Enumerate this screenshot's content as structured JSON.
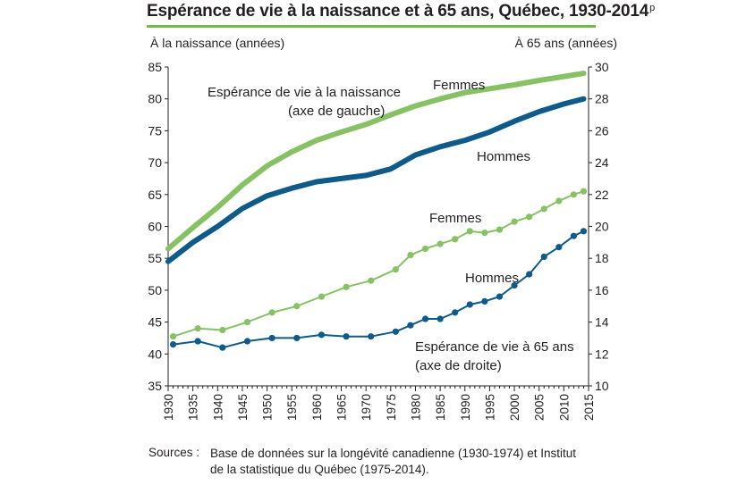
{
  "chart": {
    "title": "Espérance de vie à la naissance et à 65 ans, Québec, 1930-2014",
    "title_superscript": "p",
    "left_axis_title": "À la naissance (années)",
    "right_axis_title": "À 65 ans (années)",
    "annotation_birth_line1": "Espérance de vie à la naissance",
    "annotation_birth_line2": "(axe de gauche)",
    "annotation_65_line1": "Espérance de vie à 65 ans",
    "annotation_65_line2": "(axe de droite)",
    "label_femmes_birth": "Femmes",
    "label_hommes_birth": "Hommes",
    "label_femmes_65": "Femmes",
    "label_hommes_65": "Hommes"
  },
  "footer": {
    "sources_label": "Sources :",
    "sources_text": "Base de données sur la longévité canadienne (1930-1974) et Institut de la statistique du Québec (1975-2014)."
  },
  "colors": {
    "femmes": "#86c163",
    "hommes": "#0e5a8a",
    "title_rule": "#73b94e",
    "text": "#231f20"
  },
  "chart_data": {
    "type": "line",
    "title": "Espérance de vie à la naissance et à 65 ans, Québec, 1930-2014",
    "xlabel": "",
    "x_ticks": [
      1930,
      1935,
      1940,
      1945,
      1950,
      1955,
      1960,
      1965,
      1970,
      1975,
      1980,
      1985,
      1990,
      1995,
      2000,
      2005,
      2010,
      2015
    ],
    "left_axis": {
      "label": "À la naissance (années)",
      "ylim": [
        35,
        85
      ],
      "ticks": [
        35,
        40,
        45,
        50,
        55,
        60,
        65,
        70,
        75,
        80,
        85
      ]
    },
    "right_axis": {
      "label": "À 65 ans (années)",
      "ylim": [
        10,
        30
      ],
      "ticks": [
        10,
        12,
        14,
        16,
        18,
        20,
        22,
        24,
        26,
        28,
        30
      ]
    },
    "grid": false,
    "series": [
      {
        "name": "Femmes",
        "axis": "left",
        "group": "naissance",
        "color": "#86c163",
        "x": [
          1930,
          1935,
          1940,
          1945,
          1950,
          1955,
          1960,
          1965,
          1970,
          1975,
          1980,
          1985,
          1990,
          1995,
          2000,
          2005,
          2010,
          2014
        ],
        "y": [
          56.5,
          59.8,
          63.0,
          66.5,
          69.5,
          71.7,
          73.5,
          74.8,
          76.0,
          77.5,
          78.9,
          80.0,
          81.0,
          81.6,
          82.2,
          82.9,
          83.5,
          84.0
        ]
      },
      {
        "name": "Hommes",
        "axis": "left",
        "group": "naissance",
        "color": "#0e5a8a",
        "x": [
          1930,
          1935,
          1940,
          1945,
          1950,
          1955,
          1960,
          1965,
          1970,
          1975,
          1980,
          1985,
          1990,
          1995,
          2000,
          2005,
          2010,
          2014
        ],
        "y": [
          54.5,
          57.5,
          60.0,
          62.8,
          64.8,
          66.0,
          67.0,
          67.5,
          68.0,
          69.0,
          71.2,
          72.5,
          73.5,
          74.8,
          76.5,
          78.0,
          79.2,
          80.0
        ]
      },
      {
        "name": "Femmes",
        "axis": "right",
        "group": "65 ans",
        "color": "#86c163",
        "x": [
          1931,
          1936,
          1941,
          1946,
          1951,
          1956,
          1961,
          1966,
          1971,
          1976,
          1979,
          1982,
          1985,
          1988,
          1991,
          1994,
          1997,
          2000,
          2003,
          2006,
          2009,
          2012,
          2014
        ],
        "y": [
          13.1,
          13.6,
          13.5,
          14.0,
          14.6,
          15.0,
          15.6,
          16.2,
          16.6,
          17.3,
          18.2,
          18.6,
          18.9,
          19.2,
          19.7,
          19.6,
          19.8,
          20.3,
          20.6,
          21.1,
          21.6,
          22.0,
          22.2
        ]
      },
      {
        "name": "Hommes",
        "axis": "right",
        "group": "65 ans",
        "color": "#0e5a8a",
        "x": [
          1931,
          1936,
          1941,
          1946,
          1951,
          1956,
          1961,
          1966,
          1971,
          1976,
          1979,
          1982,
          1985,
          1988,
          1991,
          1994,
          1997,
          2000,
          2003,
          2006,
          2009,
          2012,
          2014
        ],
        "y": [
          12.6,
          12.8,
          12.4,
          12.8,
          13.0,
          13.0,
          13.2,
          13.1,
          13.1,
          13.4,
          13.8,
          14.2,
          14.2,
          14.6,
          15.1,
          15.3,
          15.6,
          16.3,
          17.0,
          18.1,
          18.7,
          19.4,
          19.7
        ]
      }
    ]
  }
}
